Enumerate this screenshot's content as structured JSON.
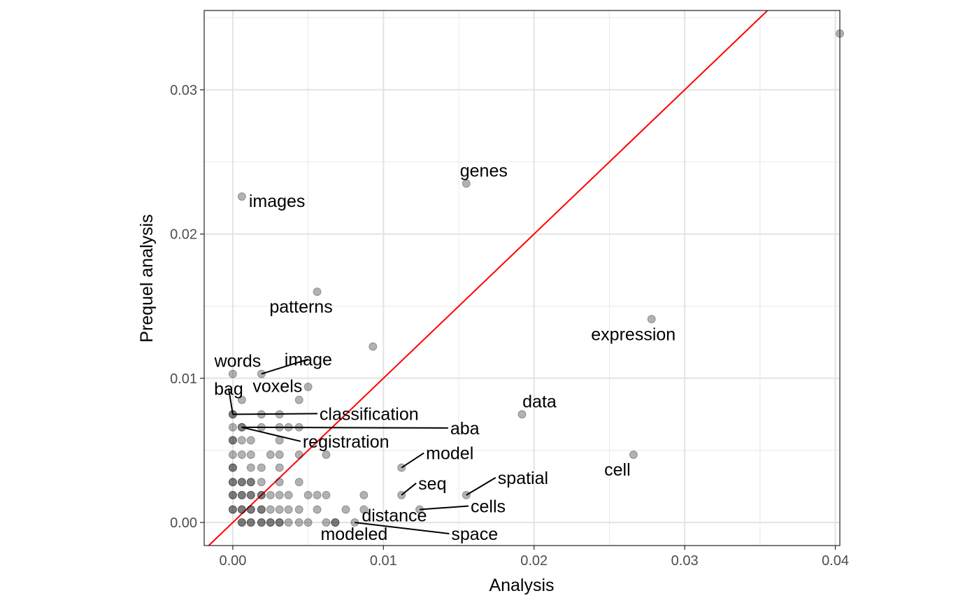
{
  "chart_data": {
    "type": "scatter",
    "title": "",
    "xlabel": "Analysis",
    "ylabel": "Prequel analysis",
    "xlim": [
      -0.0019,
      0.0403
    ],
    "ylim": [
      -0.0016,
      0.0355
    ],
    "x_ticks": [
      0,
      0.01,
      0.02,
      0.03,
      0.04
    ],
    "x_tick_labels": [
      "0.00",
      "0.01",
      "0.02",
      "0.03",
      "0.04"
    ],
    "y_ticks": [
      0,
      0.01,
      0.02,
      0.03
    ],
    "y_tick_labels": [
      "0.00",
      "0.01",
      "0.02",
      "0.03"
    ],
    "grid": true,
    "legend": "none",
    "point_color": "#000000",
    "point_alpha": 0.3,
    "reference_line": {
      "slope": 1,
      "intercept": 0,
      "color": "#ff0000"
    },
    "points": [
      {
        "x": 0.0403,
        "y": 0.0339
      },
      {
        "x": 0.0155,
        "y": 0.0235,
        "label": "genes"
      },
      {
        "x": 0.0006,
        "y": 0.0226,
        "label": "images"
      },
      {
        "x": 0.0056,
        "y": 0.016,
        "label": "patterns"
      },
      {
        "x": 0.0278,
        "y": 0.0141,
        "label": "expression"
      },
      {
        "x": 0.0093,
        "y": 0.0122
      },
      {
        "x": 0.0,
        "y": 0.0103,
        "label": "words"
      },
      {
        "x": 0.0019,
        "y": 0.0103,
        "label": "image"
      },
      {
        "x": 0.005,
        "y": 0.0094
      },
      {
        "x": 0.0006,
        "y": 0.0085,
        "label": "voxels"
      },
      {
        "x": 0.0044,
        "y": 0.0085
      },
      {
        "x": 0.0,
        "y": 0.0075,
        "label": "bag"
      },
      {
        "x": 0.0,
        "y": 0.0075,
        "label": "classification"
      },
      {
        "x": 0.0019,
        "y": 0.0075
      },
      {
        "x": 0.0031,
        "y": 0.0075
      },
      {
        "x": 0.0192,
        "y": 0.0075,
        "label": "data"
      },
      {
        "x": 0.0,
        "y": 0.0066
      },
      {
        "x": 0.0006,
        "y": 0.0066,
        "label": "aba"
      },
      {
        "x": 0.0006,
        "y": 0.0066,
        "label": "registration"
      },
      {
        "x": 0.0019,
        "y": 0.0066
      },
      {
        "x": 0.0031,
        "y": 0.0066
      },
      {
        "x": 0.0037,
        "y": 0.0066
      },
      {
        "x": 0.0044,
        "y": 0.0066
      },
      {
        "x": 0.0,
        "y": 0.0057
      },
      {
        "x": 0.0,
        "y": 0.0057
      },
      {
        "x": 0.0006,
        "y": 0.0057
      },
      {
        "x": 0.0012,
        "y": 0.0057
      },
      {
        "x": 0.0031,
        "y": 0.0057
      },
      {
        "x": 0.0,
        "y": 0.0047
      },
      {
        "x": 0.0006,
        "y": 0.0047
      },
      {
        "x": 0.0012,
        "y": 0.0047
      },
      {
        "x": 0.0025,
        "y": 0.0047
      },
      {
        "x": 0.0031,
        "y": 0.0047
      },
      {
        "x": 0.0044,
        "y": 0.0047
      },
      {
        "x": 0.0062,
        "y": 0.0047
      },
      {
        "x": 0.0266,
        "y": 0.0047,
        "label": "cell"
      },
      {
        "x": 0.0,
        "y": 0.0038
      },
      {
        "x": 0.0,
        "y": 0.0038
      },
      {
        "x": 0.0012,
        "y": 0.0038
      },
      {
        "x": 0.0019,
        "y": 0.0038
      },
      {
        "x": 0.0031,
        "y": 0.0038
      },
      {
        "x": 0.0112,
        "y": 0.0038,
        "label": "model"
      },
      {
        "x": 0.0,
        "y": 0.0028
      },
      {
        "x": 0.0,
        "y": 0.0028
      },
      {
        "x": 0.0006,
        "y": 0.0028
      },
      {
        "x": 0.0006,
        "y": 0.0028
      },
      {
        "x": 0.0012,
        "y": 0.0028
      },
      {
        "x": 0.0012,
        "y": 0.0028
      },
      {
        "x": 0.0019,
        "y": 0.0028
      },
      {
        "x": 0.0031,
        "y": 0.0028
      },
      {
        "x": 0.0044,
        "y": 0.0028
      },
      {
        "x": 0.0,
        "y": 0.0019
      },
      {
        "x": 0.0,
        "y": 0.0019
      },
      {
        "x": 0.0006,
        "y": 0.0019
      },
      {
        "x": 0.0006,
        "y": 0.0019
      },
      {
        "x": 0.0012,
        "y": 0.0019
      },
      {
        "x": 0.0012,
        "y": 0.0019
      },
      {
        "x": 0.0019,
        "y": 0.0019
      },
      {
        "x": 0.0019,
        "y": 0.0019
      },
      {
        "x": 0.0025,
        "y": 0.0019
      },
      {
        "x": 0.0031,
        "y": 0.0019
      },
      {
        "x": 0.0037,
        "y": 0.0019
      },
      {
        "x": 0.005,
        "y": 0.0019
      },
      {
        "x": 0.0056,
        "y": 0.0019
      },
      {
        "x": 0.0062,
        "y": 0.0019
      },
      {
        "x": 0.0087,
        "y": 0.0019
      },
      {
        "x": 0.0112,
        "y": 0.0019,
        "label": "seq"
      },
      {
        "x": 0.0155,
        "y": 0.0019,
        "label": "spatial"
      },
      {
        "x": 0.0,
        "y": 0.0009
      },
      {
        "x": 0.0,
        "y": 0.0009
      },
      {
        "x": 0.0006,
        "y": 0.0009
      },
      {
        "x": 0.0006,
        "y": 0.0009
      },
      {
        "x": 0.0012,
        "y": 0.0009
      },
      {
        "x": 0.0012,
        "y": 0.0009
      },
      {
        "x": 0.0019,
        "y": 0.0009
      },
      {
        "x": 0.0019,
        "y": 0.0009
      },
      {
        "x": 0.0025,
        "y": 0.0009
      },
      {
        "x": 0.0031,
        "y": 0.0009
      },
      {
        "x": 0.0037,
        "y": 0.0009
      },
      {
        "x": 0.0044,
        "y": 0.0009
      },
      {
        "x": 0.0056,
        "y": 0.0009
      },
      {
        "x": 0.0075,
        "y": 0.0009
      },
      {
        "x": 0.0087,
        "y": 0.0009,
        "label": "distance"
      },
      {
        "x": 0.0124,
        "y": 0.0009,
        "label": "cells"
      },
      {
        "x": 0.0006,
        "y": 0.0
      },
      {
        "x": 0.0006,
        "y": 0.0
      },
      {
        "x": 0.0012,
        "y": 0.0
      },
      {
        "x": 0.0012,
        "y": 0.0
      },
      {
        "x": 0.0019,
        "y": 0.0
      },
      {
        "x": 0.0019,
        "y": 0.0
      },
      {
        "x": 0.0025,
        "y": 0.0
      },
      {
        "x": 0.0025,
        "y": 0.0
      },
      {
        "x": 0.0031,
        "y": 0.0
      },
      {
        "x": 0.0031,
        "y": 0.0
      },
      {
        "x": 0.0037,
        "y": 0.0
      },
      {
        "x": 0.0044,
        "y": 0.0
      },
      {
        "x": 0.005,
        "y": 0.0
      },
      {
        "x": 0.0062,
        "y": 0.0
      },
      {
        "x": 0.0068,
        "y": 0.0
      },
      {
        "x": 0.0068,
        "y": 0.0,
        "label": "modeled"
      },
      {
        "x": 0.0081,
        "y": 0.0,
        "label": "space"
      }
    ]
  }
}
